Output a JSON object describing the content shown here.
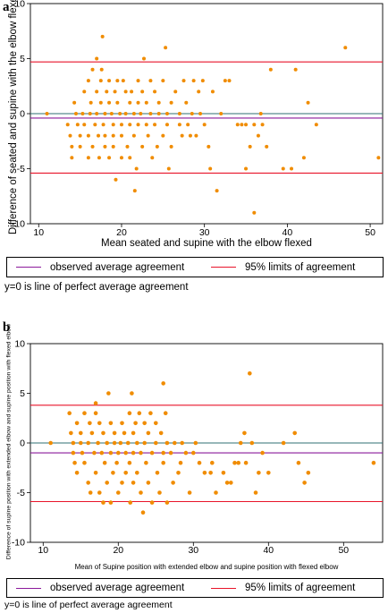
{
  "chart_data": [
    {
      "panel": "a",
      "type": "scatter",
      "xlabel": "Mean seated and supine with the elbow flexed",
      "ylabel": "Difference of seated and supine with the elbow flexed",
      "xlim": [
        9,
        51.5
      ],
      "ylim": [
        -10,
        10
      ],
      "xticks": [
        "10",
        "20",
        "30",
        "40",
        "50"
      ],
      "yticks": [
        "-10",
        "-5",
        "0",
        "5",
        "10"
      ],
      "grid": false,
      "point_color": "#f08c00",
      "lines": [
        {
          "name": "observed average agreement",
          "y": -0.4,
          "color": "#8b1a9b"
        },
        {
          "name": "95% limits of agreement",
          "y": 4.7,
          "color": "#e8142a"
        },
        {
          "name": "95% limits of agreement",
          "y": -5.4,
          "color": "#e8142a"
        },
        {
          "name": "line of perfect average agreement",
          "y": 0,
          "color": "#2f6f73"
        }
      ],
      "points": [
        [
          11,
          0
        ],
        [
          13.5,
          -1
        ],
        [
          13.8,
          -2
        ],
        [
          14,
          -3
        ],
        [
          14,
          -4
        ],
        [
          14.3,
          1
        ],
        [
          14.5,
          0
        ],
        [
          14.7,
          -1
        ],
        [
          15,
          -2
        ],
        [
          15,
          -3
        ],
        [
          15.3,
          0
        ],
        [
          15.5,
          2
        ],
        [
          15.5,
          -1
        ],
        [
          16,
          -2
        ],
        [
          16,
          -4
        ],
        [
          16,
          3
        ],
        [
          16.2,
          0
        ],
        [
          16.3,
          1
        ],
        [
          16.5,
          -3
        ],
        [
          16.5,
          4
        ],
        [
          16.8,
          -1
        ],
        [
          17,
          0
        ],
        [
          17,
          2
        ],
        [
          17,
          5
        ],
        [
          17.2,
          -2
        ],
        [
          17.3,
          -4
        ],
        [
          17.5,
          1
        ],
        [
          17.5,
          3
        ],
        [
          17.6,
          4
        ],
        [
          17.7,
          7
        ],
        [
          17.8,
          -1
        ],
        [
          18,
          0
        ],
        [
          18,
          -2
        ],
        [
          18,
          -3
        ],
        [
          18.2,
          2
        ],
        [
          18.5,
          1
        ],
        [
          18.5,
          -4
        ],
        [
          18.5,
          3
        ],
        [
          18.8,
          0
        ],
        [
          19,
          -1
        ],
        [
          19,
          -2
        ],
        [
          19,
          -3
        ],
        [
          19.2,
          2
        ],
        [
          19.3,
          -6
        ],
        [
          19.5,
          1
        ],
        [
          19.5,
          3
        ],
        [
          19.8,
          0
        ],
        [
          20,
          -1
        ],
        [
          20,
          -2
        ],
        [
          20,
          -4
        ],
        [
          20.2,
          3
        ],
        [
          20.5,
          2
        ],
        [
          20.5,
          0
        ],
        [
          20.7,
          -3
        ],
        [
          21,
          1
        ],
        [
          21,
          -1
        ],
        [
          21,
          -4
        ],
        [
          21.2,
          2
        ],
        [
          21.5,
          0
        ],
        [
          21.5,
          -2
        ],
        [
          21.6,
          -7
        ],
        [
          21.8,
          -5
        ],
        [
          22,
          1
        ],
        [
          22,
          -1
        ],
        [
          22,
          3
        ],
        [
          22.3,
          0
        ],
        [
          22.5,
          -3
        ],
        [
          22.5,
          2
        ],
        [
          22.7,
          5
        ],
        [
          23,
          -1
        ],
        [
          23,
          1
        ],
        [
          23.2,
          -2
        ],
        [
          23.5,
          0
        ],
        [
          23.5,
          3
        ],
        [
          23.7,
          -4
        ],
        [
          24,
          -1
        ],
        [
          24,
          2
        ],
        [
          24.3,
          -3
        ],
        [
          24.5,
          0
        ],
        [
          24.5,
          1
        ],
        [
          25,
          -2
        ],
        [
          25,
          3
        ],
        [
          25.3,
          6
        ],
        [
          25.5,
          -1
        ],
        [
          25.5,
          0
        ],
        [
          25.7,
          -5
        ],
        [
          26,
          1
        ],
        [
          26,
          -3
        ],
        [
          26.5,
          2
        ],
        [
          27,
          -1
        ],
        [
          27,
          0
        ],
        [
          27.3,
          -2
        ],
        [
          27.5,
          3
        ],
        [
          27.8,
          1
        ],
        [
          28,
          -1
        ],
        [
          28.3,
          -2
        ],
        [
          28.5,
          0
        ],
        [
          28.7,
          3
        ],
        [
          29,
          -2
        ],
        [
          29.3,
          2
        ],
        [
          29.5,
          0
        ],
        [
          29.8,
          3
        ],
        [
          30,
          -1
        ],
        [
          30.5,
          -3
        ],
        [
          30.7,
          -5
        ],
        [
          31,
          2
        ],
        [
          31.5,
          -7
        ],
        [
          32,
          0
        ],
        [
          32.5,
          3
        ],
        [
          33,
          3
        ],
        [
          34,
          -1
        ],
        [
          34.5,
          -1
        ],
        [
          35,
          -5
        ],
        [
          35,
          -1
        ],
        [
          35.5,
          -3
        ],
        [
          36,
          -9
        ],
        [
          36,
          -1
        ],
        [
          36.5,
          -2
        ],
        [
          36.8,
          0
        ],
        [
          37,
          -1
        ],
        [
          37.5,
          -3
        ],
        [
          38,
          4
        ],
        [
          39.5,
          -5
        ],
        [
          40.5,
          -5
        ],
        [
          41,
          4
        ],
        [
          42,
          -4
        ],
        [
          42.5,
          1
        ],
        [
          43.5,
          -1
        ],
        [
          47,
          6
        ],
        [
          51,
          -4
        ]
      ]
    },
    {
      "panel": "b",
      "type": "scatter",
      "xlabel": "Mean of Supine position with extended elbow and supine position with  flexed elbow",
      "ylabel": "Difference of supine position with extended elbow and supine position with flexed elbow",
      "xlim": [
        8.3,
        55.2
      ],
      "ylim": [
        -10,
        10
      ],
      "xticks": [
        "10",
        "20",
        "30",
        "40",
        "50"
      ],
      "yticks": [
        "-10",
        "-5",
        "0",
        "5",
        "10"
      ],
      "grid": false,
      "point_color": "#f08c00",
      "lines": [
        {
          "name": "observed average agreement",
          "y": -1.0,
          "color": "#8b1a9b"
        },
        {
          "name": "95% limits of agreement",
          "y": 3.8,
          "color": "#e8142a"
        },
        {
          "name": "95% limits of agreement",
          "y": -5.9,
          "color": "#e8142a"
        },
        {
          "name": "line of perfect average agreement",
          "y": 0,
          "color": "#2f6f73"
        }
      ],
      "points": [
        [
          11,
          0
        ],
        [
          13.5,
          3
        ],
        [
          13.7,
          1
        ],
        [
          14,
          0
        ],
        [
          14,
          -1
        ],
        [
          14.2,
          -2
        ],
        [
          14.5,
          2
        ],
        [
          14.5,
          -3
        ],
        [
          15,
          0
        ],
        [
          15,
          1
        ],
        [
          15.2,
          -1
        ],
        [
          15.5,
          3
        ],
        [
          15.5,
          -2
        ],
        [
          16,
          -4
        ],
        [
          16,
          0
        ],
        [
          16.2,
          2
        ],
        [
          16.3,
          -5
        ],
        [
          16.5,
          1
        ],
        [
          16.8,
          -1
        ],
        [
          17,
          3
        ],
        [
          17,
          4
        ],
        [
          17,
          -3
        ],
        [
          17.3,
          0
        ],
        [
          17.5,
          2
        ],
        [
          17.5,
          -5
        ],
        [
          17.8,
          -1
        ],
        [
          18,
          1
        ],
        [
          18,
          -6
        ],
        [
          18.2,
          -2
        ],
        [
          18.5,
          0
        ],
        [
          18.5,
          -4
        ],
        [
          18.7,
          5
        ],
        [
          19,
          -1
        ],
        [
          19,
          2
        ],
        [
          19,
          -6
        ],
        [
          19.3,
          -3
        ],
        [
          19.5,
          0
        ],
        [
          19.5,
          1
        ],
        [
          19.8,
          -2
        ],
        [
          20,
          -5
        ],
        [
          20,
          -1
        ],
        [
          20.3,
          0
        ],
        [
          20.5,
          2
        ],
        [
          20.5,
          -4
        ],
        [
          20.8,
          1
        ],
        [
          21,
          -1
        ],
        [
          21,
          -3
        ],
        [
          21.3,
          0
        ],
        [
          21.5,
          3
        ],
        [
          21.5,
          -2
        ],
        [
          21.6,
          -6
        ],
        [
          21.8,
          5
        ],
        [
          22,
          1
        ],
        [
          22,
          -1
        ],
        [
          22,
          -4
        ],
        [
          22.3,
          2
        ],
        [
          22.5,
          0
        ],
        [
          22.5,
          -3
        ],
        [
          22.8,
          3
        ],
        [
          23,
          -1
        ],
        [
          23,
          -5
        ],
        [
          23.3,
          -7
        ],
        [
          23.5,
          0
        ],
        [
          23.5,
          2
        ],
        [
          23.7,
          -2
        ],
        [
          24,
          1
        ],
        [
          24,
          -4
        ],
        [
          24.3,
          3
        ],
        [
          24.5,
          -1
        ],
        [
          24.5,
          -6
        ],
        [
          25,
          0
        ],
        [
          25,
          2
        ],
        [
          25.2,
          -3
        ],
        [
          25.5,
          -5
        ],
        [
          25.7,
          1
        ],
        [
          26,
          6
        ],
        [
          26,
          -1
        ],
        [
          26,
          -2
        ],
        [
          26.3,
          3
        ],
        [
          26.5,
          0
        ],
        [
          26.5,
          -6
        ],
        [
          27,
          -1
        ],
        [
          27.3,
          -4
        ],
        [
          27.5,
          0
        ],
        [
          28,
          -3
        ],
        [
          28.3,
          -2
        ],
        [
          28.5,
          0
        ],
        [
          29,
          -1
        ],
        [
          29.5,
          -5
        ],
        [
          30,
          -1
        ],
        [
          30.3,
          0
        ],
        [
          30.8,
          -2
        ],
        [
          31.5,
          -3
        ],
        [
          32.3,
          -3
        ],
        [
          32.5,
          -2
        ],
        [
          33,
          -5
        ],
        [
          34,
          -3
        ],
        [
          34.5,
          -4
        ],
        [
          35,
          -4
        ],
        [
          35.5,
          -2
        ],
        [
          36,
          -2
        ],
        [
          36.3,
          0
        ],
        [
          36.8,
          1
        ],
        [
          37,
          -2
        ],
        [
          37.5,
          7
        ],
        [
          37.8,
          0
        ],
        [
          38.3,
          -5
        ],
        [
          38.7,
          -3
        ],
        [
          39.2,
          -1
        ],
        [
          40,
          -3
        ],
        [
          42,
          0
        ],
        [
          43.5,
          1
        ],
        [
          44,
          -2
        ],
        [
          44.8,
          -4
        ],
        [
          45.3,
          -3
        ],
        [
          54,
          -2
        ]
      ]
    }
  ],
  "legend": {
    "observed": "observed average agreement",
    "limits": "95% limits of agreement"
  },
  "note": "y=0 is line of perfect average agreement"
}
